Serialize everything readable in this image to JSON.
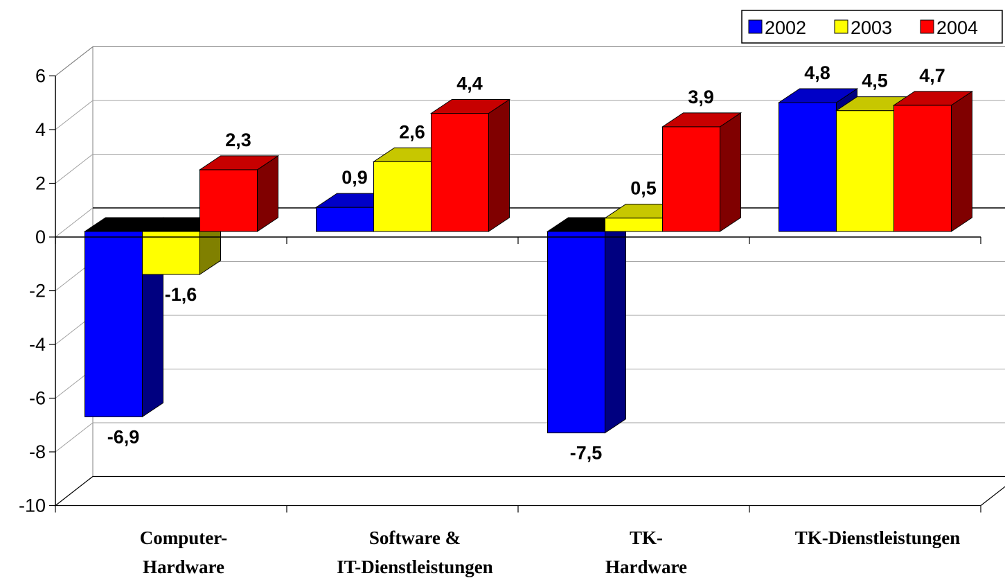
{
  "chart_data": {
    "type": "bar",
    "style": "3d-clustered",
    "categories": [
      [
        "Computer-",
        "Hardware"
      ],
      [
        "Software &",
        "IT-Dienstleistungen"
      ],
      [
        "TK-",
        "Hardware"
      ],
      [
        "TK-Dienstleistungen"
      ]
    ],
    "series": [
      {
        "name": "2002",
        "color": "#0000ff",
        "values": [
          -6.9,
          0.9,
          -7.5,
          4.8
        ]
      },
      {
        "name": "2003",
        "color": "#ffff00",
        "values": [
          -1.6,
          2.6,
          0.5,
          4.5
        ]
      },
      {
        "name": "2004",
        "color": "#ff0000",
        "values": [
          2.3,
          4.4,
          3.9,
          4.7
        ]
      }
    ],
    "data_labels": [
      [
        "-6,9",
        "0,9",
        "-7,5",
        "4,8"
      ],
      [
        "-1,6",
        "2,6",
        "0,5",
        "4,5"
      ],
      [
        "2,3",
        "4,4",
        "3,9",
        "4,7"
      ]
    ],
    "ylim": [
      -10,
      6
    ],
    "yticks": [
      6,
      4,
      2,
      0,
      -2,
      -4,
      -6,
      -8,
      -10
    ],
    "grid": true,
    "legend_position": "top-right",
    "title": "",
    "xlabel": "",
    "ylabel": ""
  }
}
